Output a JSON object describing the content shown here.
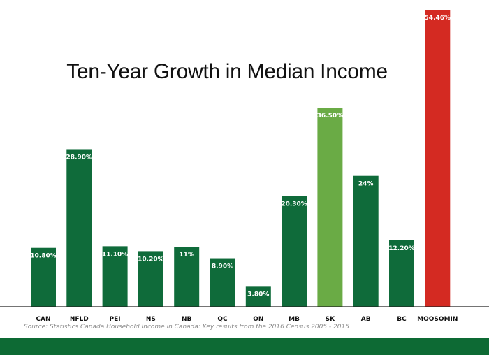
{
  "chart_data": {
    "type": "bar",
    "title": "Ten-Year Growth in Median Income",
    "categories": [
      "CAN",
      "NFLD",
      "PEI",
      "NS",
      "NB",
      "QC",
      "ON",
      "MB",
      "SK",
      "AB",
      "BC",
      "MOOSOMIN"
    ],
    "values": [
      10.8,
      28.9,
      11.1,
      10.2,
      11.0,
      8.9,
      3.8,
      20.3,
      36.5,
      24.0,
      12.2,
      54.46
    ],
    "data_labels": [
      "10.80%",
      "28.90%",
      "11.10%",
      "10.20%",
      "11%",
      "8.90%",
      "3.80%",
      "20.30%",
      "36.50%",
      "24%",
      "12.20%",
      "54.46%"
    ],
    "bar_colors": [
      "#0f6b3a",
      "#0f6b3a",
      "#0f6b3a",
      "#0f6b3a",
      "#0f6b3a",
      "#0f6b3a",
      "#0f6b3a",
      "#0f6b3a",
      "#6aab45",
      "#0f6b3a",
      "#0f6b3a",
      "#d42a22"
    ],
    "ylim": [
      0,
      54.46
    ],
    "xlabel": "",
    "ylabel": "",
    "grid": false,
    "legend": "none"
  },
  "source": "Source: Statistics Canada  Household Income in Canada:  Key results from the 2016 Census 2005 - 2015",
  "colors": {
    "bar_default": "#0f6b3a",
    "bar_highlight_province": "#6aab45",
    "bar_highlight_town": "#d42a22",
    "footer_band": "#0d6a34",
    "axis_line": "#222222"
  }
}
